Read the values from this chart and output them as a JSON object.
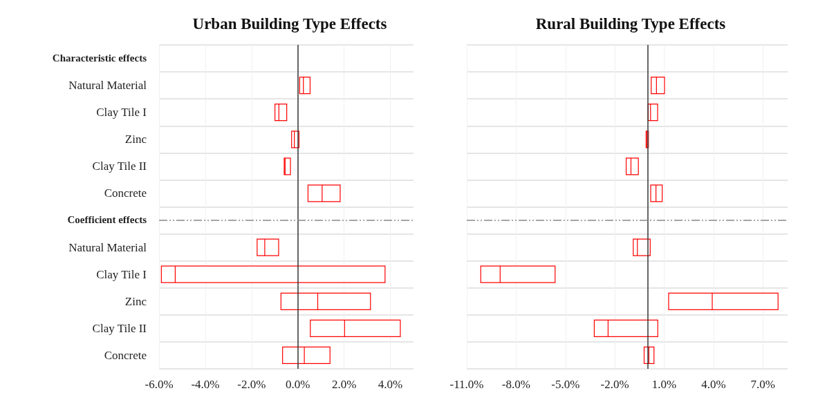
{
  "chart_data": [
    {
      "type": "box",
      "title": "Urban Building Type Effects",
      "orientation": "horizontal",
      "categories": [
        "Characteristic effects",
        "Natural Material",
        "Clay Tile I",
        "Zinc",
        "Clay Tile II",
        "Concrete",
        "Coefficient effects",
        "Natural Material",
        "Clay Tile I",
        "Zinc",
        "Clay Tile II",
        "Concrete"
      ],
      "series": [
        {
          "color": "#ff0000",
          "boxes": [
            null,
            {
              "low": 0.08,
              "q1": 0.08,
              "median": 0.24,
              "q3": 0.53,
              "high": 0.53
            },
            {
              "low": -0.99,
              "q1": -0.99,
              "median": -0.82,
              "q3": -0.48,
              "high": -0.48
            },
            {
              "low": -0.27,
              "q1": -0.27,
              "median": -0.15,
              "q3": 0.05,
              "high": 0.05
            },
            {
              "low": -0.59,
              "q1": -0.59,
              "median": -0.55,
              "q3": -0.32,
              "high": -0.32
            },
            {
              "low": 0.44,
              "q1": 0.44,
              "median": 1.05,
              "q3": 1.83,
              "high": 1.83
            },
            null,
            {
              "low": -1.76,
              "q1": -1.76,
              "median": -1.43,
              "q3": -0.83,
              "high": -0.83
            },
            {
              "low": -5.9,
              "q1": -5.9,
              "median": -5.3,
              "q3": 3.77,
              "high": 3.77
            },
            {
              "low": -0.73,
              "q1": -0.73,
              "median": 0.86,
              "q3": 3.14,
              "high": 3.14
            },
            {
              "low": 0.54,
              "q1": 0.54,
              "median": 2.02,
              "q3": 4.43,
              "high": 4.43
            },
            {
              "low": -0.66,
              "q1": -0.66,
              "median": 0.28,
              "q3": 1.39,
              "high": 1.39
            }
          ]
        }
      ],
      "xlim": [
        -6,
        5
      ],
      "xticks": [
        {
          "value": -6,
          "label": "-6.0%"
        },
        {
          "value": -4,
          "label": "-4.0%"
        },
        {
          "value": -2,
          "label": "-2.0%"
        },
        {
          "value": 0,
          "label": "0.0%"
        },
        {
          "value": 2,
          "label": "2.0%"
        },
        {
          "value": 4,
          "label": "4.0%"
        }
      ],
      "ref_lines": [
        {
          "axis": "x",
          "value": 0,
          "color": "#333333",
          "line_style": "solid"
        },
        {
          "axis": "y",
          "value": "Coefficient effects",
          "color": "#888888",
          "line_style": "dashed"
        }
      ],
      "grid": true
    },
    {
      "type": "box",
      "title": "Rural Building Type Effects",
      "orientation": "horizontal",
      "tick_labels": "x",
      "categories": [
        "Characteristic effects",
        "Natural Material",
        "Clay Tile I",
        "Zinc",
        "Clay Tile II",
        "Concrete",
        "Coefficient effects",
        "Natural Material",
        "Clay Tile I",
        "Zinc",
        "Clay Tile II",
        "Concrete"
      ],
      "series": [
        {
          "color": "#ff0000",
          "boxes": [
            null,
            {
              "low": 0.21,
              "q1": 0.21,
              "median": 0.53,
              "q3": 1.02,
              "high": 1.02
            },
            {
              "low": 0.03,
              "q1": 0.03,
              "median": 0.17,
              "q3": 0.6,
              "high": 0.6
            },
            {
              "low": -0.1,
              "q1": -0.1,
              "median": -0.04,
              "q3": 0.04,
              "high": 0.04
            },
            {
              "low": -1.31,
              "q1": -1.31,
              "median": -1.02,
              "q3": -0.57,
              "high": -0.57
            },
            {
              "low": 0.18,
              "q1": 0.18,
              "median": 0.5,
              "q3": 0.88,
              "high": 0.88
            },
            null,
            {
              "low": -0.88,
              "q1": -0.88,
              "median": -0.63,
              "q3": 0.15,
              "high": 0.15
            },
            {
              "low": -10.15,
              "q1": -10.15,
              "median": -8.97,
              "q3": -5.63,
              "high": -5.63
            },
            {
              "low": 1.27,
              "q1": 1.27,
              "median": 3.92,
              "q3": 7.92,
              "high": 7.92
            },
            {
              "low": -3.25,
              "q1": -3.25,
              "median": -2.41,
              "q3": 0.61,
              "high": 0.61
            },
            {
              "low": -0.22,
              "q1": -0.22,
              "median": 0.07,
              "q3": 0.38,
              "high": 0.38
            }
          ]
        }
      ],
      "xlim": [
        -11,
        8.5
      ],
      "xticks": [
        {
          "value": -11,
          "label": "-11.0%"
        },
        {
          "value": -8,
          "label": "-8.0%"
        },
        {
          "value": -5,
          "label": "-5.0%"
        },
        {
          "value": -2,
          "label": "-2.0%"
        },
        {
          "value": 1,
          "label": "1.0%"
        },
        {
          "value": 4,
          "label": "4.0%"
        },
        {
          "value": 7,
          "label": "7.0%"
        }
      ],
      "ref_lines": [
        {
          "axis": "x",
          "value": 0,
          "color": "#333333",
          "line_style": "solid"
        },
        {
          "axis": "y",
          "value": "Coefficient effects",
          "color": "#888888",
          "line_style": "dashed"
        }
      ],
      "grid": true
    }
  ]
}
